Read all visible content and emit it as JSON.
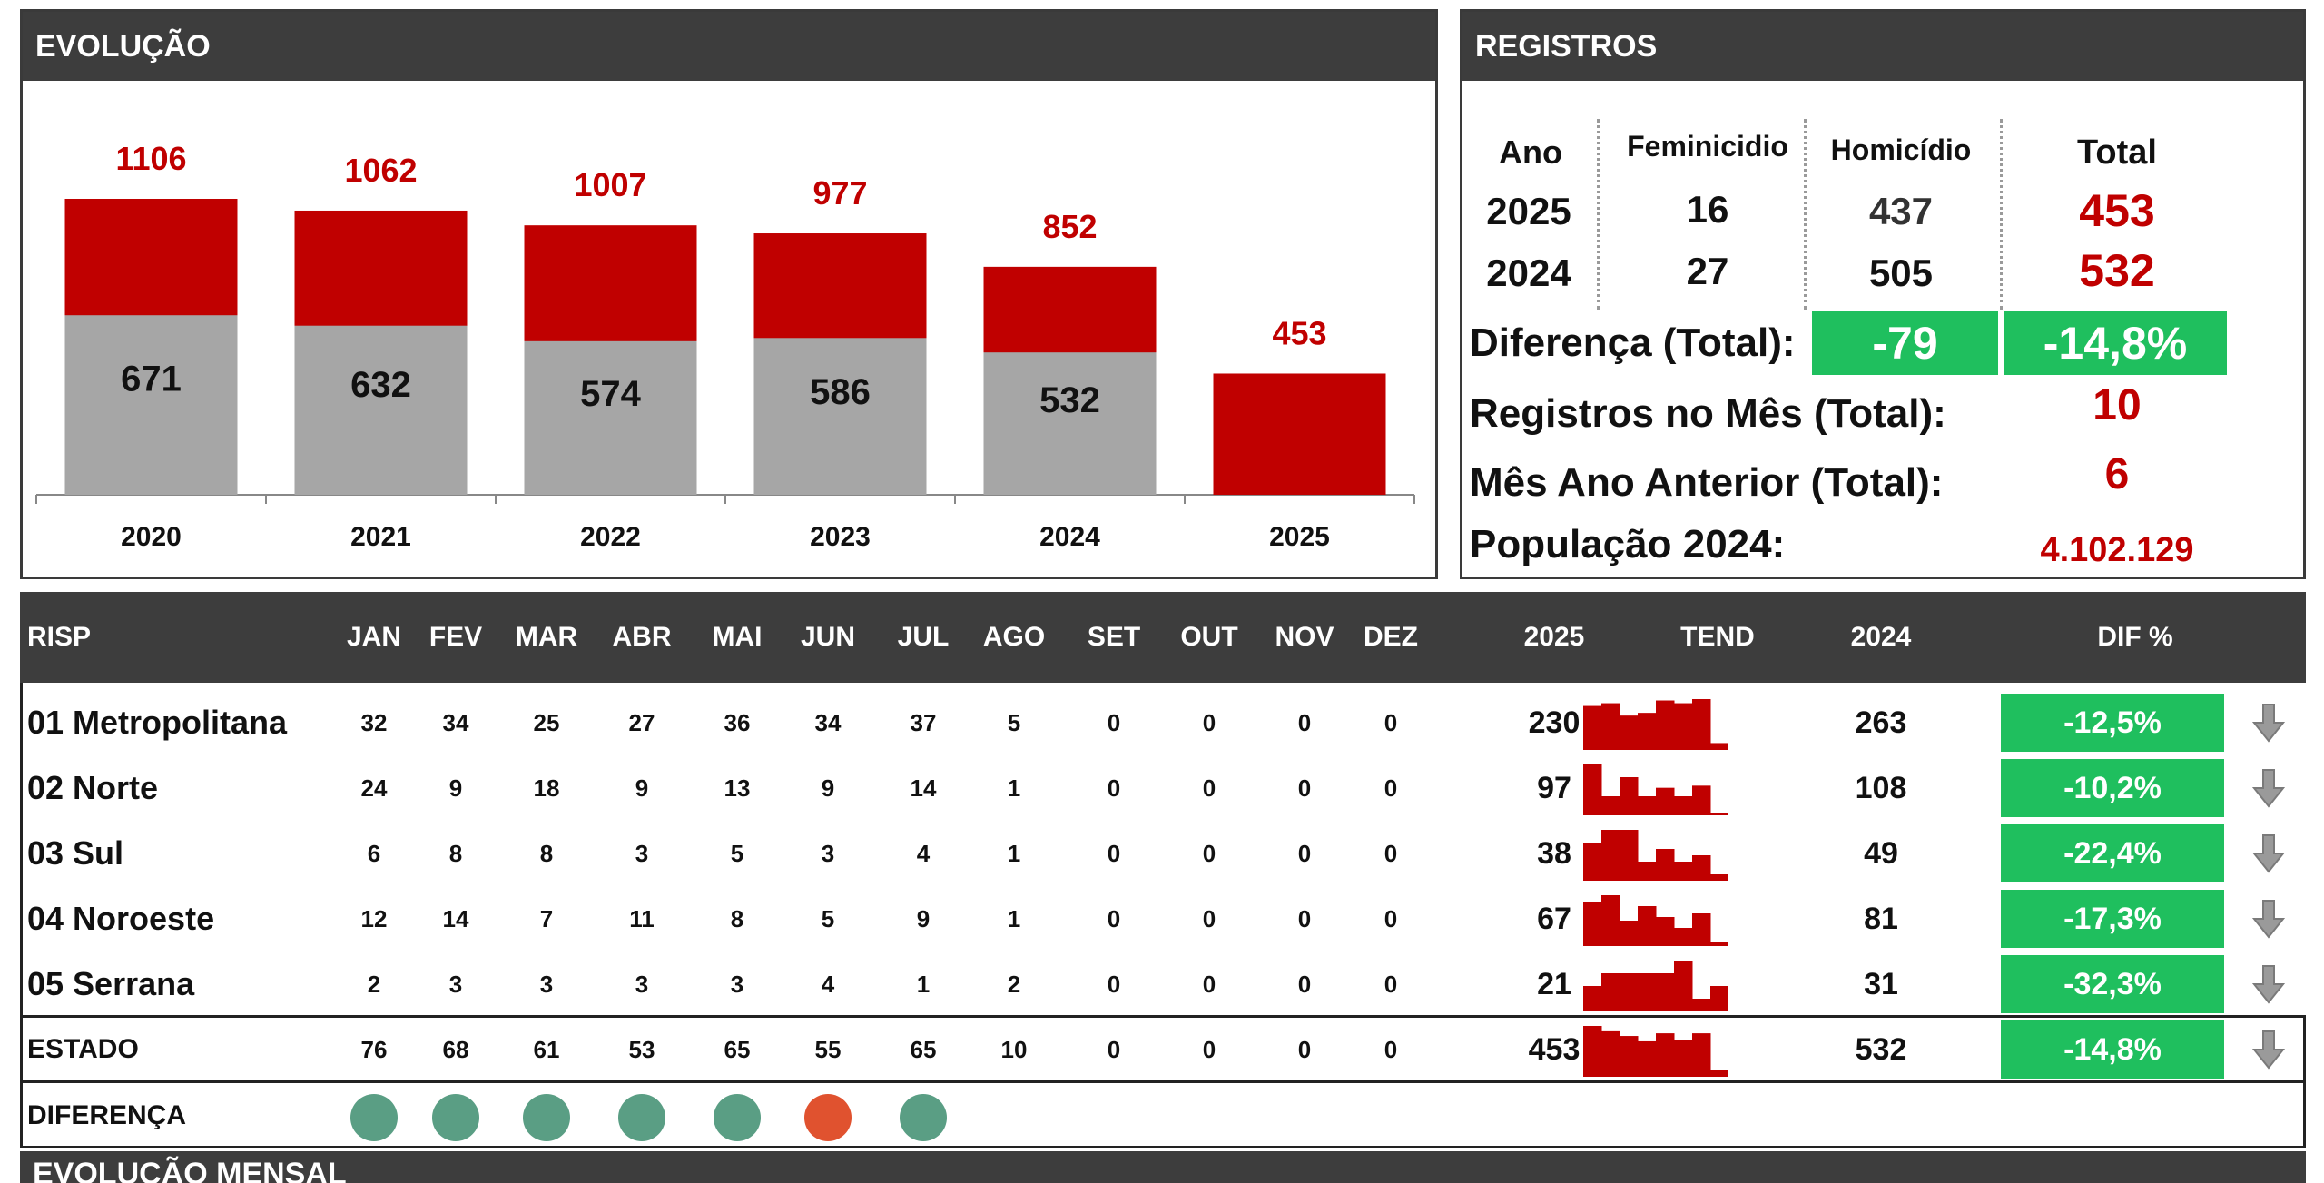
{
  "evolucao": {
    "title": "EVOLUÇÃO",
    "chart_data": {
      "type": "bar",
      "categories": [
        "2020",
        "2021",
        "2022",
        "2023",
        "2024",
        "2025"
      ],
      "series": [
        {
          "values": [
            671,
            632,
            574,
            586,
            532,
            null
          ],
          "color": "#a6a6a6"
        },
        {
          "values": [
            1106,
            1062,
            1007,
            977,
            852,
            453
          ],
          "color": "#c00000"
        }
      ],
      "labels_inner": [
        "671",
        "632",
        "574",
        "586",
        "532",
        ""
      ],
      "labels_total": [
        "1106",
        "1062",
        "1007",
        "977",
        "852",
        "453"
      ]
    }
  },
  "registros": {
    "title": "REGISTROS",
    "headers": {
      "ano": "Ano",
      "feminicidio": "Feminicidio",
      "homicidio": "Homicídio",
      "total": "Total"
    },
    "rows": [
      {
        "ano": "2025",
        "feminicidio": "16",
        "homicidio": "437",
        "total": "453"
      },
      {
        "ano": "2024",
        "feminicidio": "27",
        "homicidio": "505",
        "total": "532"
      }
    ],
    "diferenca_label": "Diferença (Total):",
    "diferenca_abs": "-79",
    "diferenca_pct": "-14,8%",
    "mes_label": "Registros no Mês (Total):",
    "mes_value": "10",
    "mes_anterior_label": "Mês Ano Anterior (Total):",
    "mes_anterior_value": "6",
    "populacao_label": "População 2024:",
    "populacao_value": "4.102.129"
  },
  "risp": {
    "headers": [
      "RISP",
      "JAN",
      "FEV",
      "MAR",
      "ABR",
      "MAI",
      "JUN",
      "JUL",
      "AGO",
      "SET",
      "OUT",
      "NOV",
      "DEZ",
      "2025",
      "TEND",
      "2024",
      "DIF %"
    ],
    "rows": [
      {
        "name": "01 Metropolitana",
        "months": [
          "32",
          "34",
          "25",
          "27",
          "36",
          "34",
          "37",
          "5",
          "0",
          "0",
          "0",
          "0"
        ],
        "y2025": "230",
        "y2024": "263",
        "dif": "-12,5%",
        "trend": [
          32,
          34,
          25,
          27,
          36,
          34,
          37,
          5
        ]
      },
      {
        "name": "02 Norte",
        "months": [
          "24",
          "9",
          "18",
          "9",
          "13",
          "9",
          "14",
          "1",
          "0",
          "0",
          "0",
          "0"
        ],
        "y2025": "97",
        "y2024": "108",
        "dif": "-10,2%",
        "trend": [
          24,
          9,
          18,
          9,
          13,
          9,
          14,
          1
        ]
      },
      {
        "name": "03 Sul",
        "months": [
          "6",
          "8",
          "8",
          "3",
          "5",
          "3",
          "4",
          "1",
          "0",
          "0",
          "0",
          "0"
        ],
        "y2025": "38",
        "y2024": "49",
        "dif": "-22,4%",
        "trend": [
          6,
          8,
          8,
          3,
          5,
          3,
          4,
          1
        ]
      },
      {
        "name": "04 Noroeste",
        "months": [
          "12",
          "14",
          "7",
          "11",
          "8",
          "5",
          "9",
          "1",
          "0",
          "0",
          "0",
          "0"
        ],
        "y2025": "67",
        "y2024": "81",
        "dif": "-17,3%",
        "trend": [
          12,
          14,
          7,
          11,
          8,
          5,
          9,
          1
        ]
      },
      {
        "name": "05 Serrana",
        "months": [
          "2",
          "3",
          "3",
          "3",
          "3",
          "4",
          "1",
          "2",
          "0",
          "0",
          "0",
          "0"
        ],
        "y2025": "21",
        "y2024": "31",
        "dif": "-32,3%",
        "trend": [
          2,
          3,
          3,
          3,
          3,
          4,
          1,
          2
        ]
      }
    ],
    "estado": {
      "name": "ESTADO",
      "months": [
        "76",
        "68",
        "61",
        "53",
        "65",
        "55",
        "65",
        "10",
        "0",
        "0",
        "0",
        "0"
      ],
      "y2025": "453",
      "y2024": "532",
      "dif": "-14,8%",
      "trend": [
        76,
        68,
        61,
        53,
        65,
        55,
        65,
        10
      ]
    },
    "diferenca": {
      "name": "DIFERENÇA",
      "dots": [
        "#5a9e84",
        "#5a9e84",
        "#5a9e84",
        "#5a9e84",
        "#5a9e84",
        "#e0522f",
        "#5a9e84"
      ]
    },
    "colors": {
      "green": "#1fbf5e",
      "spark": "#c00000"
    }
  },
  "mensal": {
    "title": "EVOLUÇÃO MENSAL"
  }
}
